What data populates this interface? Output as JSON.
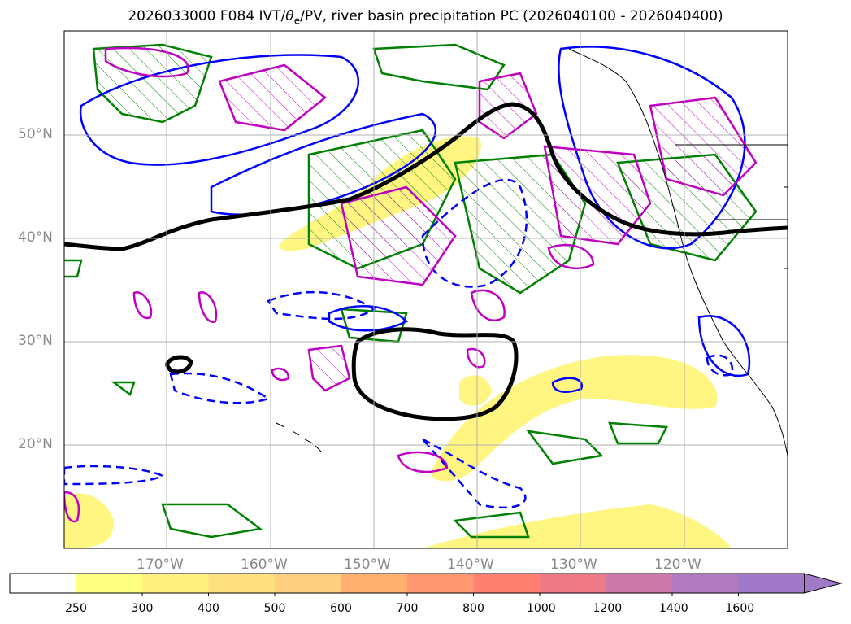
{
  "title": {
    "prefix": "2026033000 F084 IVT/",
    "theta": "θ",
    "sub": "e",
    "suffix": "/PV, river basin precipitation PC (2026040100 - 2026040400)"
  },
  "map": {
    "lon_labels": [
      "170°W",
      "160°W",
      "150°W",
      "140°W",
      "130°W",
      "120°W"
    ],
    "lat_labels": [
      "50°N",
      "40°N",
      "30°N",
      "20°N"
    ],
    "lon_values": [
      -170,
      -160,
      -150,
      -140,
      -130,
      -120
    ],
    "lat_values": [
      50,
      40,
      30,
      20
    ],
    "lon_range": [
      -180,
      -110
    ],
    "lat_range": [
      10,
      60
    ],
    "grid": true,
    "contour_colors": {
      "ivt_fill": "#fff57a",
      "theta_e": "#0000ff",
      "pv": "#c000c0",
      "precip": "#008000",
      "jet": "#000000"
    }
  },
  "colorbar": {
    "levels": [
      "250",
      "300",
      "400",
      "500",
      "600",
      "700",
      "800",
      "1000",
      "1200",
      "1400",
      "1600"
    ],
    "colors": [
      "#ffffff",
      "#ffff80",
      "#fff080",
      "#ffe080",
      "#ffd080",
      "#ffb070",
      "#ff9870",
      "#ff8070",
      "#ee7a88",
      "#cc78a8",
      "#b07ac0",
      "#a07ac8"
    ],
    "extend": "max"
  }
}
